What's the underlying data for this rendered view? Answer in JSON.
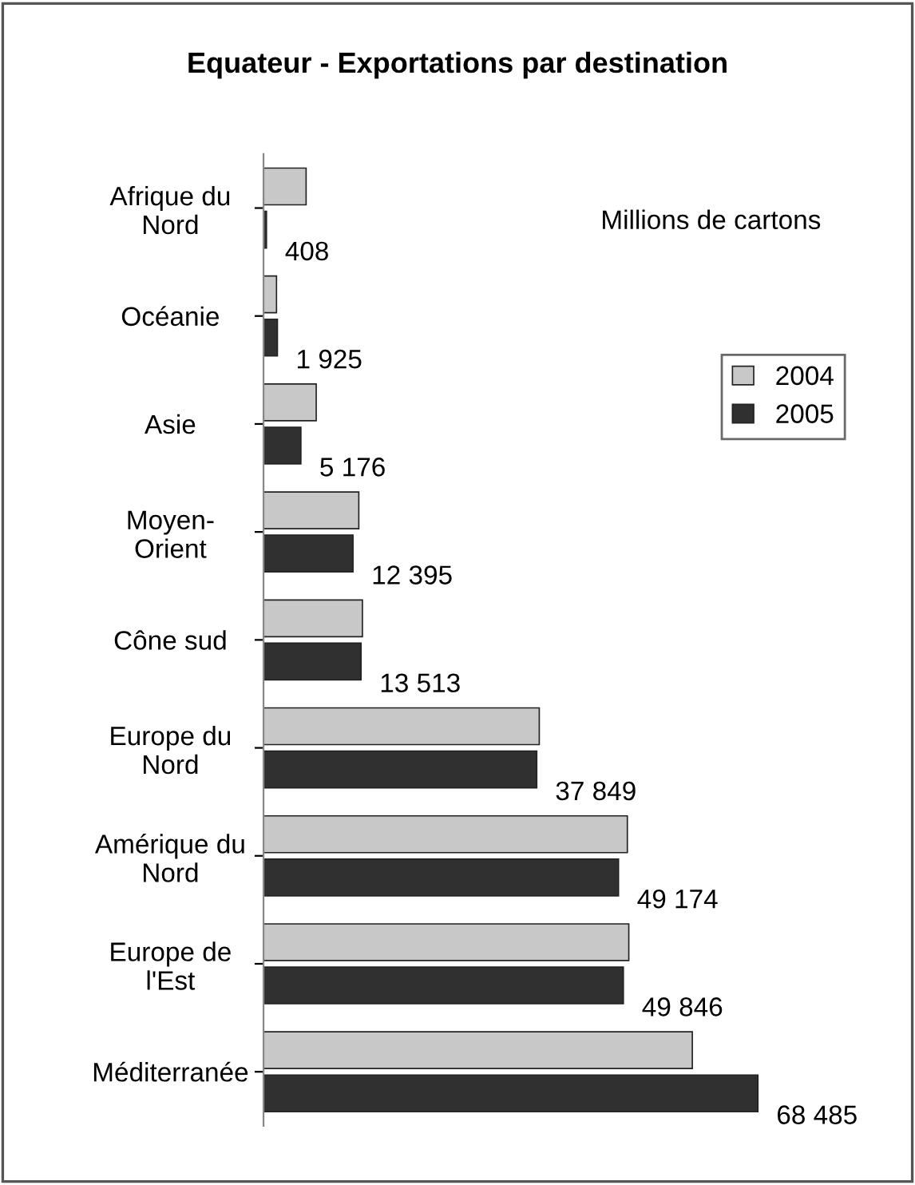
{
  "chart_data": {
    "type": "bar",
    "orientation": "horizontal",
    "title": "Equateur - Exportations par destination",
    "annotations": [
      "Millions de cartons"
    ],
    "categories": [
      "Afrique du\nNord",
      "Océanie",
      "Asie",
      "Moyen-\nOrient",
      "Cône sud",
      "Europe du\nNord",
      "Amérique du\nNord",
      "Europe de\nl'Est",
      "Méditerranée"
    ],
    "series": [
      {
        "name": "2004",
        "color": "#c8c8c8",
        "values": [
          5900,
          1800,
          7300,
          13200,
          13700,
          38200,
          50400,
          50600,
          59400
        ]
      },
      {
        "name": "2005",
        "color": "#303030",
        "values": [
          408,
          1925,
          5176,
          12395,
          13513,
          37849,
          49174,
          49846,
          68485
        ],
        "value_labels": [
          "408",
          "1 925",
          "5 176",
          "12 395",
          "13 513",
          "37 849",
          "49 174",
          "49 846",
          "68 485"
        ]
      }
    ],
    "tick_labels": "y",
    "grid": false,
    "legend": "right"
  }
}
